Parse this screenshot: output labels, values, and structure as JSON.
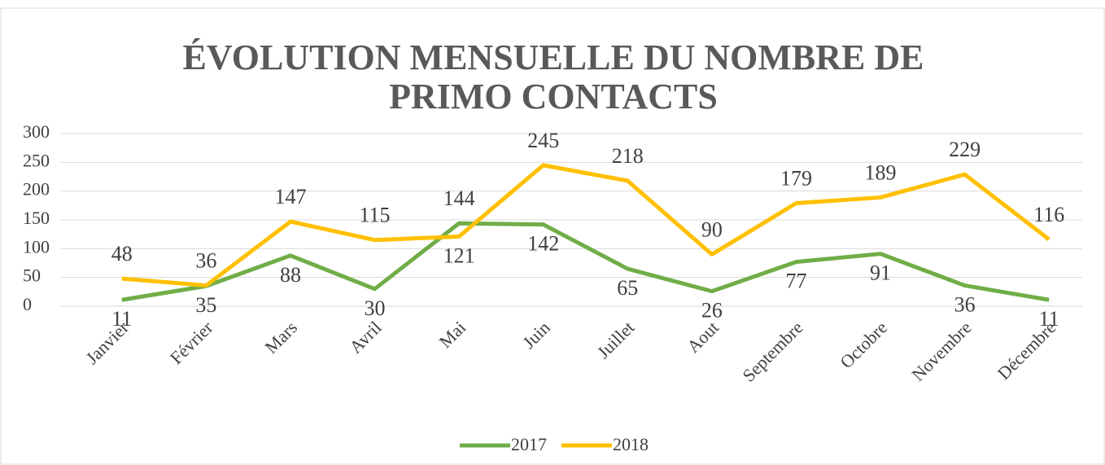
{
  "chart_data": {
    "type": "line",
    "title": "ÉVOLUTION MENSUELLE DU NOMBRE DE PRIMO CONTACTS",
    "categories": [
      "Janvier",
      "Février",
      "Mars",
      "Avril",
      "Mai",
      "Juin",
      "Juillet",
      "Aout",
      "Septembre",
      "Octobre",
      "Novembre",
      "Décembre"
    ],
    "series": [
      {
        "name": "2017",
        "color": "#70ad47",
        "values": [
          11,
          35,
          88,
          30,
          144,
          142,
          65,
          26,
          77,
          91,
          36,
          11
        ]
      },
      {
        "name": "2018",
        "color": "#ffc000",
        "values": [
          48,
          36,
          147,
          115,
          121,
          245,
          218,
          90,
          179,
          189,
          229,
          116
        ]
      }
    ],
    "ylim": [
      0,
      300
    ],
    "yticks": [
      0,
      50,
      100,
      150,
      200,
      250,
      300
    ],
    "grid": true,
    "legend": "bottom"
  }
}
